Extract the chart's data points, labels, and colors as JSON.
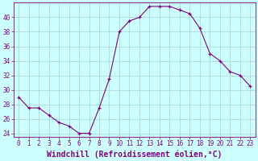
{
  "hours": [
    0,
    1,
    2,
    3,
    4,
    5,
    6,
    7,
    8,
    9,
    10,
    11,
    12,
    13,
    14,
    15,
    16,
    17,
    18,
    19,
    20,
    21,
    22,
    23
  ],
  "values": [
    29,
    27.5,
    27.5,
    26.5,
    25.5,
    25,
    24,
    24,
    27.5,
    31.5,
    38,
    39.5,
    40,
    41.5,
    41.5,
    41.5,
    41,
    40.5,
    38.5,
    35,
    34,
    32.5,
    32,
    30.5
  ],
  "line_color": "#800080",
  "marker": "+",
  "marker_color": "#800080",
  "bg_color": "#ccffff",
  "grid_color": "#b0d8d8",
  "xlabel": "Windchill (Refroidissement éolien,°C)",
  "xlabel_color": "#800080",
  "tick_color": "#800080",
  "spine_color": "#800080",
  "ylim": [
    23.5,
    42
  ],
  "yticks": [
    24,
    26,
    28,
    30,
    32,
    34,
    36,
    38,
    40
  ],
  "xlim": [
    -0.5,
    23.5
  ],
  "xticks": [
    0,
    1,
    2,
    3,
    4,
    5,
    6,
    7,
    8,
    9,
    10,
    11,
    12,
    13,
    14,
    15,
    16,
    17,
    18,
    19,
    20,
    21,
    22,
    23
  ],
  "xtick_labels": [
    "0",
    "1",
    "2",
    "3",
    "4",
    "5",
    "6",
    "7",
    "8",
    "9",
    "10",
    "11",
    "12",
    "13",
    "14",
    "15",
    "16",
    "17",
    "18",
    "19",
    "20",
    "21",
    "22",
    "23"
  ],
  "tick_font_size": 5.5,
  "xlabel_font_size": 7,
  "marker_size": 3
}
